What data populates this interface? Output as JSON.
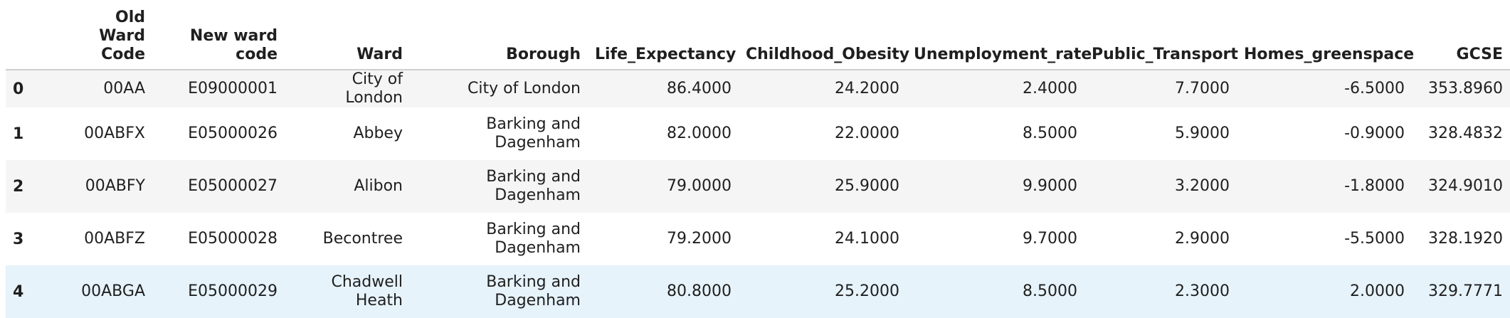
{
  "table": {
    "columns": [
      "",
      "Old Ward Code",
      "New ward code",
      "Ward",
      "Borough",
      "Life_Expectancy",
      "Childhood_Obesity",
      "Unemployment_rate",
      "Public_Transport",
      "Homes_greenspace",
      "GCSE"
    ],
    "rows": [
      {
        "index": "0",
        "old_code": "00AA",
        "new_code": "E09000001",
        "ward": "City of London",
        "borough": "City of London",
        "life_expectancy": "86.4000",
        "childhood_obesity": "24.2000",
        "unemployment_rate": "2.4000",
        "public_transport": "7.7000",
        "homes_greenspace": "-6.5000",
        "gcse": "353.8960"
      },
      {
        "index": "1",
        "old_code": "00ABFX",
        "new_code": "E05000026",
        "ward": "Abbey",
        "borough": "Barking and Dagenham",
        "life_expectancy": "82.0000",
        "childhood_obesity": "22.0000",
        "unemployment_rate": "8.5000",
        "public_transport": "5.9000",
        "homes_greenspace": "-0.9000",
        "gcse": "328.4832"
      },
      {
        "index": "2",
        "old_code": "00ABFY",
        "new_code": "E05000027",
        "ward": "Alibon",
        "borough": "Barking and Dagenham",
        "life_expectancy": "79.0000",
        "childhood_obesity": "25.9000",
        "unemployment_rate": "9.9000",
        "public_transport": "3.2000",
        "homes_greenspace": "-1.8000",
        "gcse": "324.9010"
      },
      {
        "index": "3",
        "old_code": "00ABFZ",
        "new_code": "E05000028",
        "ward": "Becontree",
        "borough": "Barking and Dagenham",
        "life_expectancy": "79.2000",
        "childhood_obesity": "24.1000",
        "unemployment_rate": "9.7000",
        "public_transport": "2.9000",
        "homes_greenspace": "-5.5000",
        "gcse": "328.1920"
      },
      {
        "index": "4",
        "old_code": "00ABGA",
        "new_code": "E05000029",
        "ward": "Chadwell Heath",
        "borough": "Barking and Dagenham",
        "life_expectancy": "80.8000",
        "childhood_obesity": "25.2000",
        "unemployment_rate": "8.5000",
        "public_transport": "2.3000",
        "homes_greenspace": "2.0000",
        "gcse": "329.7771"
      }
    ]
  },
  "colors": {
    "row_stripe": "#f5f5f5",
    "row_hover": "#e6f3fb",
    "header_rule": "#cfcfcf"
  }
}
